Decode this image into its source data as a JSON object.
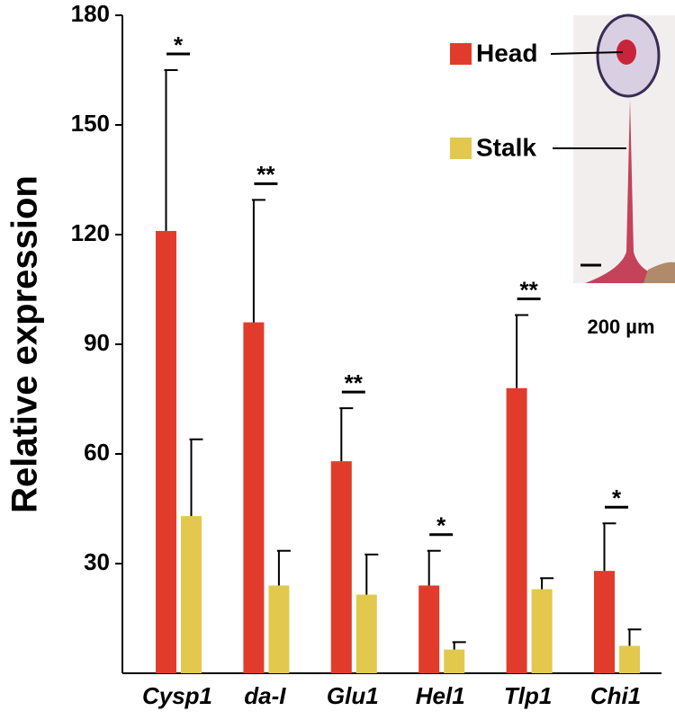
{
  "chart_data": {
    "type": "bar",
    "y_label": "Relative expression",
    "categories": [
      "Cysp1",
      "da-I",
      "Glu1",
      "Hel1",
      "Tlp1",
      "Chi1"
    ],
    "series": [
      {
        "name": "Head",
        "color": "#e13c2b",
        "values": [
          121,
          96,
          58,
          24,
          78,
          28
        ],
        "errors": [
          44,
          33.5,
          14.5,
          9.5,
          20,
          13
        ]
      },
      {
        "name": "Stalk",
        "color": "#e2c94e",
        "values": [
          43,
          24,
          21.5,
          6.5,
          23,
          7.5
        ],
        "errors": [
          21,
          9.5,
          11,
          2,
          3,
          4.5
        ]
      }
    ],
    "significance": [
      "*",
      "**",
      "**",
      "*",
      "**",
      "*"
    ],
    "scale_bar_label": "200 µm",
    "ylim": [
      0,
      180
    ],
    "yticks": [
      30,
      60,
      90,
      120,
      150,
      180
    ],
    "grid": false,
    "legend": "top-right"
  }
}
